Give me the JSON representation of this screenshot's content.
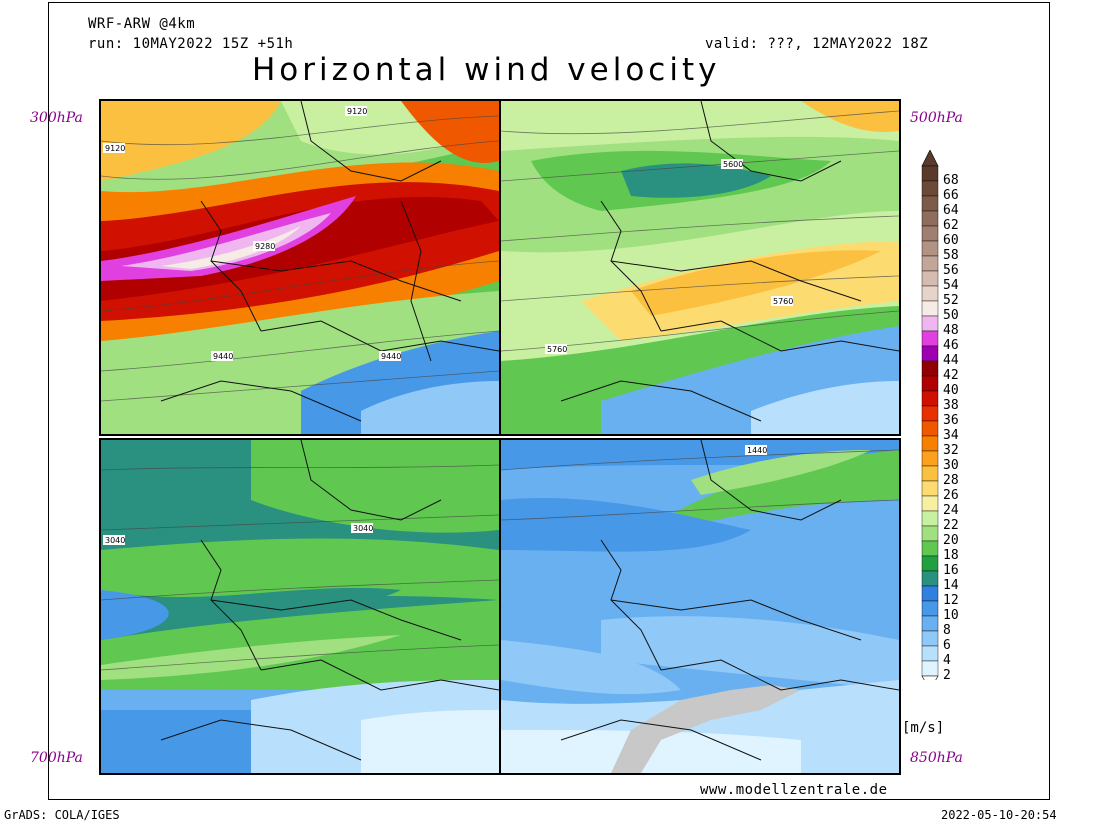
{
  "header": {
    "model": "WRF-ARW @4km",
    "run": "run: 10MAY2022 15Z +51h",
    "valid": "valid: ???, 12MAY2022 18Z",
    "title": "Horizontal wind velocity"
  },
  "panels": [
    {
      "level": "300hPa",
      "contours": [
        "9120",
        "9120",
        "9280",
        "9440",
        "9440"
      ]
    },
    {
      "level": "500hPa",
      "contours": [
        "5600",
        "5760",
        "5760"
      ]
    },
    {
      "level": "700hPa",
      "contours": [
        "3040",
        "3040"
      ]
    },
    {
      "level": "850hPa",
      "contours": [
        "1440"
      ]
    }
  ],
  "colorbar": {
    "unit": "[m/s]",
    "labels": [
      "68",
      "66",
      "64",
      "62",
      "60",
      "58",
      "56",
      "54",
      "52",
      "50",
      "48",
      "46",
      "44",
      "42",
      "40",
      "38",
      "36",
      "34",
      "32",
      "30",
      "28",
      "26",
      "24",
      "22",
      "20",
      "18",
      "16",
      "14",
      "12",
      "10",
      "8",
      "6",
      "4",
      "2"
    ],
    "colors": [
      "#5a3a2a",
      "#6b4a3a",
      "#7d5a4a",
      "#8f6c5c",
      "#a07e70",
      "#b29282",
      "#c4a698",
      "#d6bcae",
      "#e6d4ca",
      "#f5ece6",
      "#f0b6f0",
      "#e040e0",
      "#a000b0",
      "#900000",
      "#b00000",
      "#d01000",
      "#e83000",
      "#f05800",
      "#f88000",
      "#fca020",
      "#fcc040",
      "#fcdc70",
      "#f8f0a0",
      "#c8f0a0",
      "#a0e080",
      "#60c850",
      "#20a040",
      "#2a9080",
      "#3080e0",
      "#4898e8",
      "#68b0f0",
      "#90c8f8",
      "#b8e0fc",
      "#e0f4ff"
    ]
  },
  "footer": {
    "website": "www.modellzentrale.de",
    "software": "GrADS: COLA/IGES",
    "timestamp": "2022-05-10-20:54"
  }
}
